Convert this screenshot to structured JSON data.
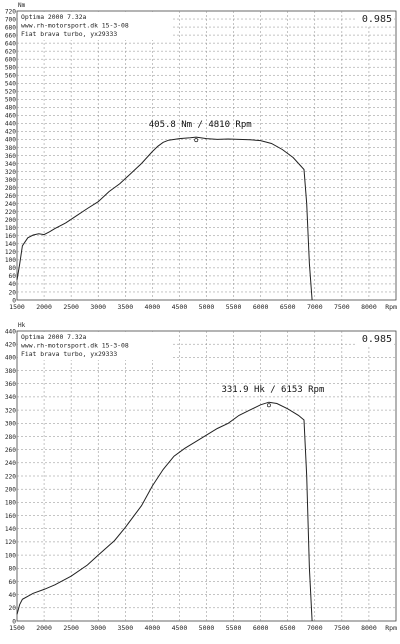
{
  "chart_data": [
    {
      "type": "line",
      "unit_label": "Nm",
      "ylim": [
        0,
        720
      ],
      "yticks": [
        0,
        20,
        40,
        60,
        80,
        100,
        120,
        140,
        160,
        180,
        200,
        220,
        240,
        260,
        280,
        300,
        320,
        340,
        360,
        380,
        400,
        420,
        440,
        460,
        480,
        500,
        520,
        540,
        560,
        580,
        600,
        620,
        640,
        660,
        680,
        700,
        720
      ],
      "xlim": [
        1500,
        8500
      ],
      "xticks": [
        1500,
        2000,
        2500,
        3000,
        3500,
        4000,
        4500,
        5000,
        5500,
        6000,
        6500,
        7000,
        7500,
        8000
      ],
      "xlabel": "Rpm",
      "header_lines": [
        "Optima 2000 7.32a",
        "www.rh-motorsport.dk   15-3-08",
        "Fiat brava turbo, yx29333"
      ],
      "corner_value": "0.985",
      "peak_label": "405.8 Nm / 4810 Rpm",
      "peak": {
        "x": 4810,
        "y": 405.8
      },
      "series": [
        {
          "x": [
            1500,
            1550,
            1600,
            1700,
            1800,
            1900,
            2000,
            2100,
            2200,
            2400,
            2600,
            2800,
            3000,
            3200,
            3400,
            3600,
            3800,
            4000,
            4100,
            4200,
            4300,
            4500,
            4700,
            4810,
            5000,
            5200,
            5400,
            5600,
            5800,
            6000,
            6200,
            6400,
            6600,
            6800,
            6850,
            6900,
            6950
          ],
          "y": [
            50,
            90,
            135,
            155,
            162,
            165,
            163,
            170,
            178,
            192,
            210,
            228,
            245,
            270,
            290,
            315,
            340,
            370,
            383,
            393,
            398,
            402,
            404,
            405.8,
            402,
            400,
            401,
            400,
            399,
            397,
            390,
            375,
            355,
            325,
            240,
            90,
            0
          ]
        }
      ]
    },
    {
      "type": "line",
      "unit_label": "Hk",
      "ylim": [
        0,
        440
      ],
      "yticks": [
        0,
        20,
        40,
        60,
        80,
        100,
        120,
        140,
        160,
        180,
        200,
        220,
        240,
        260,
        280,
        300,
        320,
        340,
        360,
        380,
        400,
        420,
        440
      ],
      "xlim": [
        1500,
        8500
      ],
      "xticks": [
        1500,
        2000,
        2500,
        3000,
        3500,
        4000,
        4500,
        5000,
        5500,
        6000,
        6500,
        7000,
        7500,
        8000
      ],
      "xlabel": "Rpm",
      "header_lines": [
        "Optima 2000 7.32a",
        "www.rh-motorsport.dk   15-3-08",
        "Fiat brava turbo, yx29333"
      ],
      "corner_value": "0.985",
      "peak_label": "331.9 Hk / 6153 Rpm",
      "peak": {
        "x": 6153,
        "y": 331.9
      },
      "series": [
        {
          "x": [
            1500,
            1550,
            1600,
            1800,
            2000,
            2200,
            2500,
            2800,
            3000,
            3300,
            3500,
            3800,
            4000,
            4200,
            4400,
            4600,
            4800,
            5000,
            5200,
            5400,
            5600,
            5800,
            6000,
            6153,
            6300,
            6500,
            6700,
            6800,
            6850,
            6900,
            6950
          ],
          "y": [
            10,
            25,
            33,
            42,
            48,
            55,
            68,
            85,
            100,
            122,
            142,
            175,
            205,
            230,
            250,
            262,
            272,
            282,
            292,
            300,
            312,
            320,
            328,
            331.9,
            330,
            322,
            312,
            305,
            220,
            80,
            0
          ]
        }
      ]
    }
  ]
}
